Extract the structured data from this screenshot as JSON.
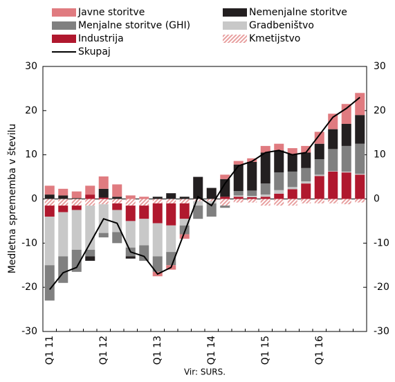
{
  "chart_data": {
    "type": "bar",
    "stacked": true,
    "y_label": "Medletna sprememba v številu",
    "source": "Vir: SURS.",
    "categories": [
      "Q1 11",
      null,
      null,
      null,
      "Q1 12",
      null,
      null,
      null,
      "Q1 13",
      null,
      null,
      null,
      "Q1 14",
      null,
      null,
      null,
      "Q1 15",
      null,
      null,
      null,
      "Q1 16",
      null,
      null,
      null
    ],
    "ylim": [
      -30,
      30
    ],
    "yticks": [
      -30,
      -20,
      -10,
      0,
      10,
      20,
      30
    ],
    "y2lim": [
      -30,
      30
    ],
    "y2ticks": [
      -30,
      -20,
      -10,
      0,
      10,
      20,
      30
    ],
    "series": [
      {
        "name": "Javne storitve",
        "color": "#e07b80",
        "values": [
          2,
          1.5,
          1.5,
          2,
          2.8,
          2.8,
          0.8,
          0.5,
          -1,
          -1,
          -1,
          0,
          0,
          1,
          0.8,
          0.8,
          1.5,
          1.5,
          1.3,
          1.5,
          2.7,
          3.5,
          4.5,
          5
        ]
      },
      {
        "name": "Nemenjalne storitve",
        "color": "#231f20",
        "values": [
          1,
          0.8,
          0.2,
          -1,
          2,
          0.5,
          -0.5,
          0,
          0.5,
          1.3,
          0.5,
          5,
          2.5,
          4,
          6,
          6.5,
          7,
          5,
          4,
          3.5,
          3.5,
          4.5,
          5,
          6.5
        ]
      },
      {
        "name": "Menjalne storitve (GHI)",
        "color": "#808080",
        "values": [
          -8,
          -6,
          -5,
          -1.5,
          -1,
          -2.5,
          -2,
          -3.5,
          -3.5,
          -3,
          -2,
          -3,
          -3,
          -0.5,
          1,
          1.2,
          2.5,
          4,
          3.5,
          3,
          3.5,
          5,
          5.8,
          6.8
        ]
      },
      {
        "name": "Gradbeništvo",
        "color": "#c8c8c8",
        "values": [
          -11,
          -10,
          -9,
          -10,
          -6.5,
          -5,
          -6,
          -6,
          -7.5,
          -6,
          -1.5,
          -1,
          -0.5,
          0,
          0.3,
          0.3,
          0.5,
          0.8,
          0.5,
          0.5,
          0.3,
          0.1,
          0.2,
          0.2
        ]
      },
      {
        "name": "Industrija",
        "color": "#b0182e",
        "values": [
          -2.5,
          -1.5,
          -1,
          1,
          0.3,
          -1.5,
          -3.5,
          -3,
          -4.5,
          -5,
          -3.5,
          0,
          0,
          0.5,
          0.5,
          0.4,
          0.5,
          1.2,
          2.2,
          3.5,
          5.2,
          6.2,
          6,
          5.5
        ]
      },
      {
        "name": "Kmetijstvo",
        "color": "#e8a0a0",
        "pattern": "hatch",
        "values": [
          -1.5,
          -1.5,
          -1.5,
          -1.5,
          -1.2,
          -1,
          -1.5,
          -1.5,
          -1,
          -1,
          -1,
          -0.5,
          -0.5,
          -1.5,
          -0.8,
          -0.8,
          -1.5,
          -1.5,
          -1.5,
          -1,
          -1,
          -1,
          -1.2,
          -0.8
        ]
      },
      {
        "name": "Skupaj",
        "type": "line",
        "color": "#000000",
        "values": [
          -20.5,
          -16.7,
          -15.5,
          -10,
          -4.5,
          -5.5,
          -12,
          -13,
          -17,
          -15.5,
          -7.5,
          0.5,
          -1.5,
          3.5,
          7.5,
          8.5,
          10.5,
          11,
          10,
          10.5,
          14.5,
          18.5,
          20.5,
          23
        ]
      }
    ]
  }
}
